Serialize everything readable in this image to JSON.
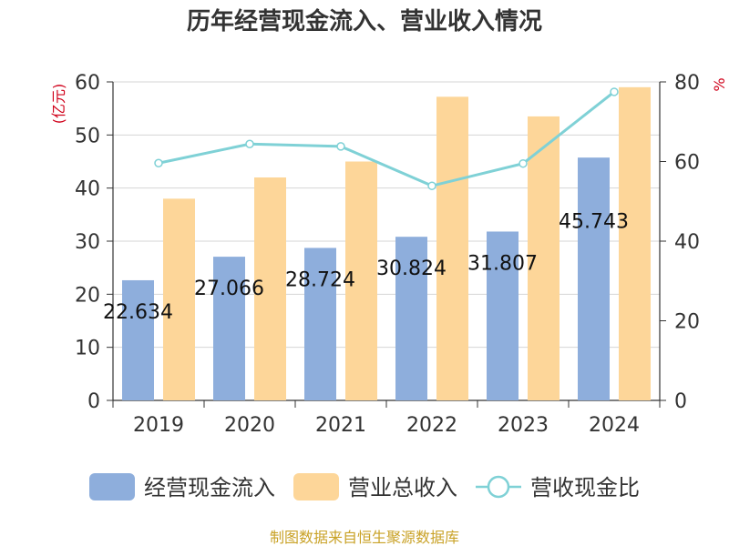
{
  "chart_data": {
    "type": "bar",
    "title": "历年经营现金流入、营业收入情况",
    "ylabel_left": "(亿元)",
    "ylabel_right": "%",
    "categories": [
      "2019",
      "2020",
      "2021",
      "2022",
      "2023",
      "2024"
    ],
    "series": [
      {
        "name": "经营现金流入",
        "type": "bar",
        "axis": "left",
        "values": [
          22.634,
          27.066,
          28.724,
          30.824,
          31.807,
          45.743
        ],
        "color": "#8eaedc"
      },
      {
        "name": "营业总收入",
        "type": "bar",
        "axis": "left",
        "values": [
          38.0,
          42.0,
          45.0,
          57.2,
          53.5,
          59.0
        ],
        "color": "#fdd699"
      },
      {
        "name": "营收现金比",
        "type": "line",
        "axis": "right",
        "values": [
          59.6,
          64.4,
          63.8,
          53.9,
          59.5,
          77.5
        ],
        "color": "#7fd1d6"
      }
    ],
    "data_labels": [
      "22.634",
      "27.066",
      "28.724",
      "30.824",
      "31.807",
      "45.743"
    ],
    "ylim_left": [
      0,
      60
    ],
    "yticks_left": [
      "0",
      "10",
      "20",
      "30",
      "40",
      "50",
      "60"
    ],
    "ylim_right": [
      0,
      80
    ],
    "yticks_right": [
      "0",
      "20",
      "40",
      "60",
      "80"
    ],
    "grid": true,
    "legend_position": "bottom",
    "source_note": "制图数据来自恒生聚源数据库"
  }
}
